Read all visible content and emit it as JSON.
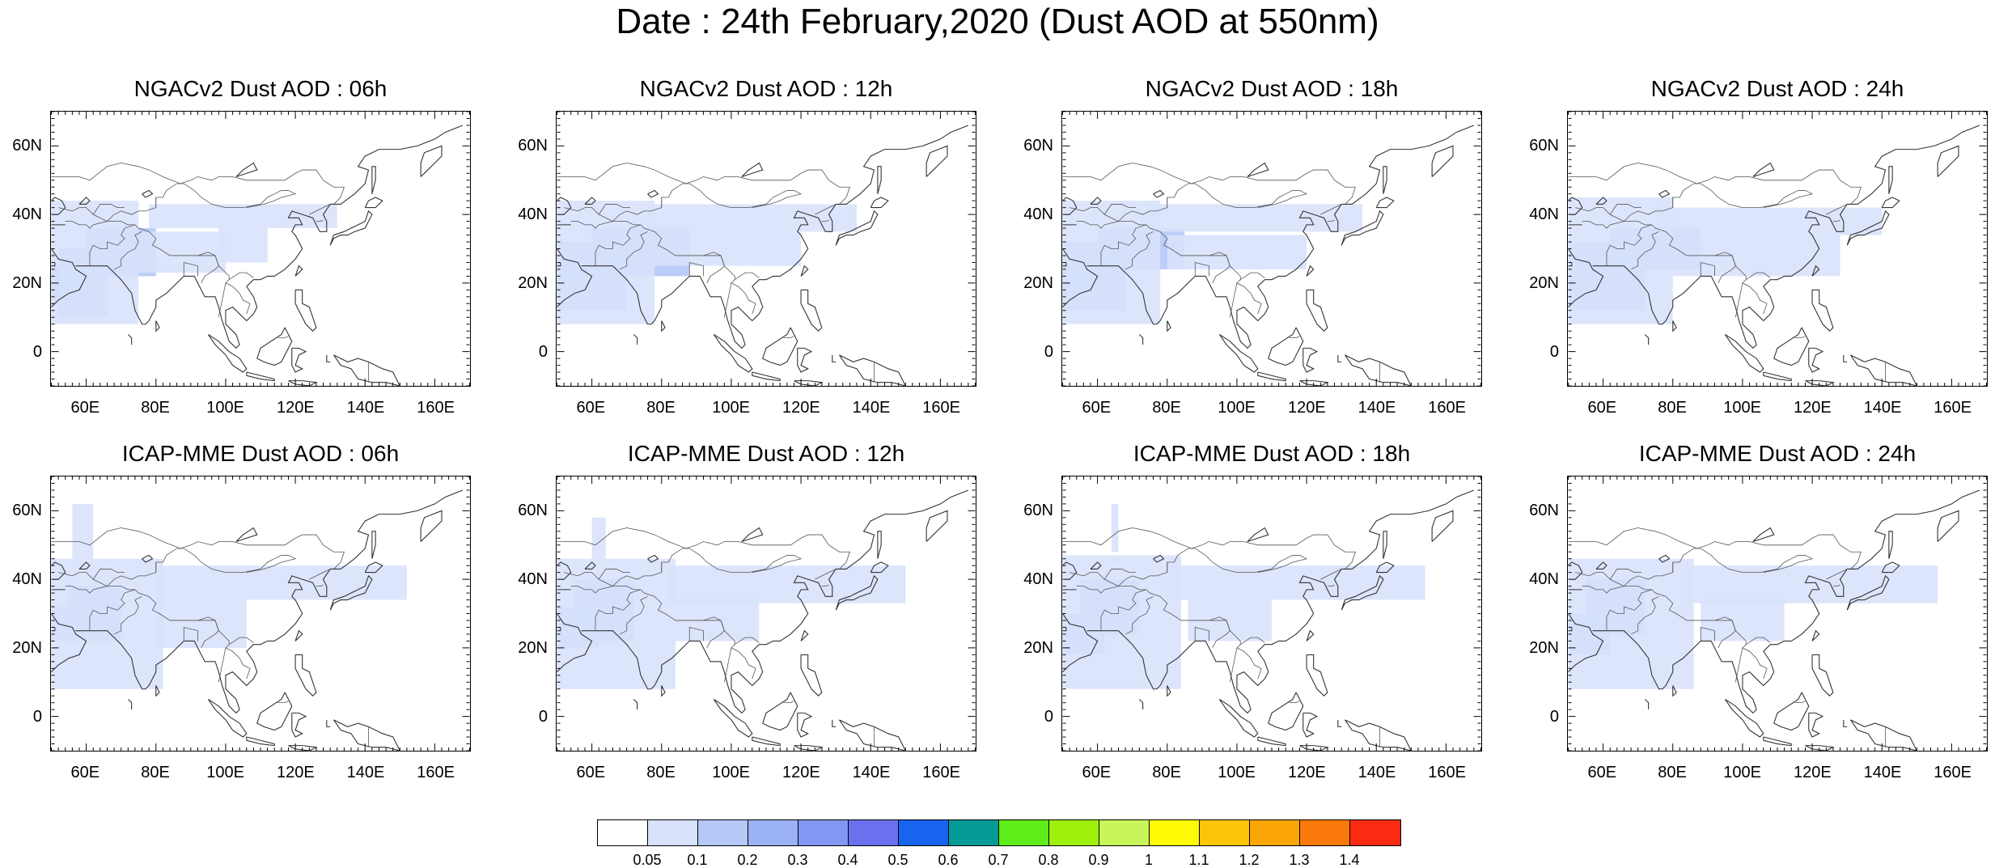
{
  "title": "Date : 24th February,2020 (Dust AOD at 550nm)",
  "panels": [
    {
      "title": "NGACv2 Dust AOD : 06h",
      "row": 0,
      "col": 0
    },
    {
      "title": "NGACv2 Dust AOD : 12h",
      "row": 0,
      "col": 1
    },
    {
      "title": "NGACv2 Dust AOD : 18h",
      "row": 0,
      "col": 2
    },
    {
      "title": "NGACv2 Dust AOD : 24h",
      "row": 0,
      "col": 3
    },
    {
      "title": "ICAP-MME Dust AOD : 06h",
      "row": 1,
      "col": 0
    },
    {
      "title": "ICAP-MME Dust AOD : 12h",
      "row": 1,
      "col": 1
    },
    {
      "title": "ICAP-MME Dust AOD : 18h",
      "row": 1,
      "col": 2
    },
    {
      "title": "ICAP-MME Dust AOD : 24h",
      "row": 1,
      "col": 3
    }
  ],
  "map_extent": {
    "lon": [
      50,
      170
    ],
    "lat": [
      -10,
      70
    ]
  },
  "lat_ticks": [
    {
      "value": 60,
      "label": "60N"
    },
    {
      "value": 40,
      "label": "40N"
    },
    {
      "value": 20,
      "label": "20N"
    },
    {
      "value": 0,
      "label": "0"
    }
  ],
  "lon_ticks": [
    {
      "value": 60,
      "label": "60E"
    },
    {
      "value": 80,
      "label": "80E"
    },
    {
      "value": 100,
      "label": "100E"
    },
    {
      "value": 120,
      "label": "120E"
    },
    {
      "value": 140,
      "label": "140E"
    },
    {
      "value": 160,
      "label": "160E"
    }
  ],
  "colorbar": {
    "labels": [
      "0.05",
      "0.1",
      "0.2",
      "0.3",
      "0.4",
      "0.5",
      "0.6",
      "0.7",
      "0.8",
      "0.9",
      "1",
      "1.1",
      "1.2",
      "1.3",
      "1.4"
    ],
    "colors": [
      "#ffffff",
      "#d8e2fb",
      "#b6c8f8",
      "#9bb3f6",
      "#8197f1",
      "#6b71ee",
      "#1764ee",
      "#069a96",
      "#5dee1a",
      "#9ff00c",
      "#c8f65a",
      "#fffa05",
      "#fdc508",
      "#fca506",
      "#f97a0a",
      "#fb2b12"
    ]
  },
  "dust_fields": [
    [
      {
        "lon": [
          50,
          62
        ],
        "lat": [
          15,
          25
        ],
        "level": 3
      },
      {
        "lon": [
          52,
          66
        ],
        "lat": [
          10,
          30
        ],
        "level": 2
      },
      {
        "lon": [
          60,
          80
        ],
        "lat": [
          22,
          36
        ],
        "level": 2
      },
      {
        "lon": [
          50,
          75
        ],
        "lat": [
          8,
          44
        ],
        "level": 1
      },
      {
        "lon": [
          75,
          100
        ],
        "lat": [
          23,
          35
        ],
        "level": 1
      },
      {
        "lon": [
          78,
          132
        ],
        "lat": [
          36,
          43
        ],
        "level": 1
      },
      {
        "lon": [
          98,
          112
        ],
        "lat": [
          26,
          36
        ],
        "level": 1
      }
    ],
    [
      {
        "lon": [
          50,
          60
        ],
        "lat": [
          15,
          25
        ],
        "level": 3
      },
      {
        "lon": [
          50,
          70
        ],
        "lat": [
          12,
          32
        ],
        "level": 2
      },
      {
        "lon": [
          60,
          88
        ],
        "lat": [
          22,
          36
        ],
        "level": 2
      },
      {
        "lon": [
          50,
          78
        ],
        "lat": [
          8,
          44
        ],
        "level": 1
      },
      {
        "lon": [
          78,
          120
        ],
        "lat": [
          25,
          35
        ],
        "level": 1
      },
      {
        "lon": [
          76,
          136
        ],
        "lat": [
          35,
          43
        ],
        "level": 1
      }
    ],
    [
      {
        "lon": [
          50,
          60
        ],
        "lat": [
          14,
          25
        ],
        "level": 3
      },
      {
        "lon": [
          50,
          68
        ],
        "lat": [
          12,
          32
        ],
        "level": 2
      },
      {
        "lon": [
          60,
          85
        ],
        "lat": [
          24,
          36
        ],
        "level": 2
      },
      {
        "lon": [
          50,
          78
        ],
        "lat": [
          8,
          44
        ],
        "level": 1
      },
      {
        "lon": [
          80,
          120
        ],
        "lat": [
          24,
          34
        ],
        "level": 1
      },
      {
        "lon": [
          74,
          136
        ],
        "lat": [
          35,
          43
        ],
        "level": 1
      }
    ],
    [
      {
        "lon": [
          50,
          62
        ],
        "lat": [
          15,
          26
        ],
        "level": 3
      },
      {
        "lon": [
          50,
          72
        ],
        "lat": [
          12,
          32
        ],
        "level": 2
      },
      {
        "lon": [
          62,
          88
        ],
        "lat": [
          24,
          36
        ],
        "level": 2
      },
      {
        "lon": [
          50,
          80
        ],
        "lat": [
          8,
          45
        ],
        "level": 1
      },
      {
        "lon": [
          80,
          128
        ],
        "lat": [
          22,
          34
        ],
        "level": 1
      },
      {
        "lon": [
          75,
          140
        ],
        "lat": [
          34,
          42
        ],
        "level": 1
      }
    ],
    [
      {
        "lon": [
          50,
          62
        ],
        "lat": [
          22,
          32
        ],
        "level": 2
      },
      {
        "lon": [
          55,
          70
        ],
        "lat": [
          22,
          38
        ],
        "level": 2
      },
      {
        "lon": [
          50,
          82
        ],
        "lat": [
          8,
          46
        ],
        "level": 1
      },
      {
        "lon": [
          56,
          62
        ],
        "lat": [
          46,
          62
        ],
        "level": 1
      },
      {
        "lon": [
          80,
          152
        ],
        "lat": [
          34,
          44
        ],
        "level": 1
      },
      {
        "lon": [
          80,
          106
        ],
        "lat": [
          20,
          34
        ],
        "level": 1
      }
    ],
    [
      {
        "lon": [
          50,
          62
        ],
        "lat": [
          20,
          32
        ],
        "level": 2
      },
      {
        "lon": [
          55,
          72
        ],
        "lat": [
          22,
          40
        ],
        "level": 2
      },
      {
        "lon": [
          50,
          84
        ],
        "lat": [
          8,
          46
        ],
        "level": 1
      },
      {
        "lon": [
          60,
          64
        ],
        "lat": [
          46,
          58
        ],
        "level": 1
      },
      {
        "lon": [
          82,
          150
        ],
        "lat": [
          33,
          44
        ],
        "level": 1
      },
      {
        "lon": [
          84,
          108
        ],
        "lat": [
          22,
          34
        ],
        "level": 1
      }
    ],
    [
      {
        "lon": [
          50,
          62
        ],
        "lat": [
          18,
          30
        ],
        "level": 2
      },
      {
        "lon": [
          55,
          72
        ],
        "lat": [
          24,
          40
        ],
        "level": 2
      },
      {
        "lon": [
          50,
          84
        ],
        "lat": [
          8,
          47
        ],
        "level": 1
      },
      {
        "lon": [
          64,
          66
        ],
        "lat": [
          48,
          62
        ],
        "level": 1
      },
      {
        "lon": [
          80,
          154
        ],
        "lat": [
          34,
          44
        ],
        "level": 1
      },
      {
        "lon": [
          86,
          110
        ],
        "lat": [
          22,
          34
        ],
        "level": 1
      }
    ],
    [
      {
        "lon": [
          50,
          62
        ],
        "lat": [
          18,
          30
        ],
        "level": 2
      },
      {
        "lon": [
          55,
          72
        ],
        "lat": [
          24,
          40
        ],
        "level": 2
      },
      {
        "lon": [
          50,
          86
        ],
        "lat": [
          8,
          46
        ],
        "level": 1
      },
      {
        "lon": [
          84,
          156
        ],
        "lat": [
          33,
          44
        ],
        "level": 1
      },
      {
        "lon": [
          88,
          112
        ],
        "lat": [
          22,
          34
        ],
        "level": 1
      }
    ]
  ]
}
